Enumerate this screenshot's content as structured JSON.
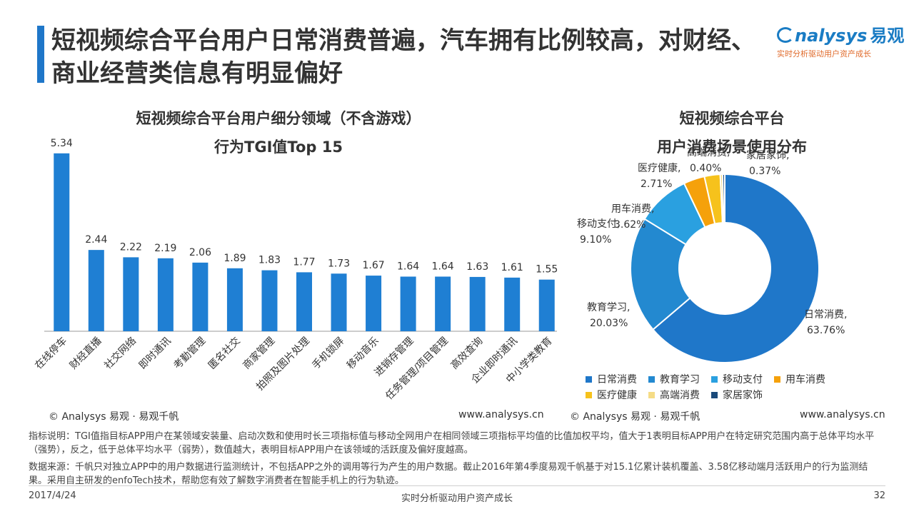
{
  "header": {
    "title": "短视频综合平台用户日常消费普遍，汽车拥有比例较高，对财经、商业经营类信息有明显偏好",
    "logo_text": "nalysys",
    "logo_cn": "易观",
    "logo_slogan": "实时分析驱动用户资产成长",
    "logo_color": "#1a7cc4"
  },
  "chart_data": [
    {
      "type": "bar",
      "title": "短视频综合平台用户细分领域（不含游戏）",
      "subtitle": "行为TGI值Top 15",
      "categories": [
        "在线停车",
        "财经直播",
        "社交网络",
        "即时通讯",
        "考勤管理",
        "匿名社交",
        "商家管理",
        "拍照及图片处理",
        "手机锁屏",
        "移动音乐",
        "进销存管理",
        "任务管理/项目管理",
        "高效查询",
        "企业即时通讯",
        "中小学类教育"
      ],
      "values": [
        5.34,
        2.44,
        2.22,
        2.19,
        2.06,
        1.89,
        1.83,
        1.77,
        1.73,
        1.67,
        1.64,
        1.64,
        1.63,
        1.61,
        1.55
      ],
      "value_labels": [
        "5.34",
        "2.44",
        "2.22",
        "2.19",
        "2.06",
        "1.89",
        "1.83",
        "1.77",
        "1.73",
        "1.67",
        "1.64",
        "1.64",
        "1.63",
        "1.61",
        "1.55"
      ],
      "ylim": [
        0,
        6
      ],
      "grid": false,
      "bar_color": "#1f7fd3"
    },
    {
      "type": "pie",
      "variant": "donut",
      "title": "短视频综合平台",
      "subtitle": "用户消费场景使用分布",
      "slices": [
        {
          "name": "日常消费",
          "value": 63.76,
          "label": "63.76%",
          "color": "#1f77c9"
        },
        {
          "name": "教育学习",
          "value": 20.03,
          "label": "20.03%",
          "color": "#2389d0"
        },
        {
          "name": "移动支付",
          "value": 9.1,
          "label": "9.10%",
          "color": "#2aa0e0"
        },
        {
          "name": "用车消费",
          "value": 3.62,
          "label": "3.62%",
          "color": "#f5a10b"
        },
        {
          "name": "医疗健康",
          "value": 2.71,
          "label": "2.71%",
          "color": "#f6c21c"
        },
        {
          "name": "高端消费",
          "value": 0.4,
          "label": "0.40%",
          "color": "#f5dc86"
        },
        {
          "name": "家居家饰",
          "value": 0.37,
          "label": "0.37%",
          "color": "#1a4a7a"
        }
      ],
      "legend_position": "bottom"
    }
  ],
  "footer": {
    "left_copyright": "© Analysys 易观 · 易观千帆",
    "left_url": "www.analysys.cn",
    "right_copyright": "© Analysys 易观 · 易观千帆",
    "right_url": "www.analysys.cn",
    "note1": "指标说明：TGI值指目标APP用户在某领域安装量、启动次数和使用时长三项指标值与移动全网用户在相同领域三项指标平均值的比值加权平均，值大于1表明目标APP用户在特定研究范围内高于总体平均水平（强势），反之，低于总体平均水平（弱势），数值越大，表明目标APP用户在该领域的活跃度及偏好度越高。",
    "note2": "数据来源：千帆只对独立APP中的用户数据进行监测统计，不包括APP之外的调用等行为产生的用户数据。截止2016年第4季度易观千帆基于对15.1亿累计装机覆盖、3.58亿移动端月活跃用户的行为监测结果。采用自主研发的enfoTech技术，帮助您有效了解数字消费者在智能手机上的行为轨迹。",
    "date": "2017/4/24",
    "slogan": "实时分析驱动用户资产成长",
    "page": "32"
  }
}
